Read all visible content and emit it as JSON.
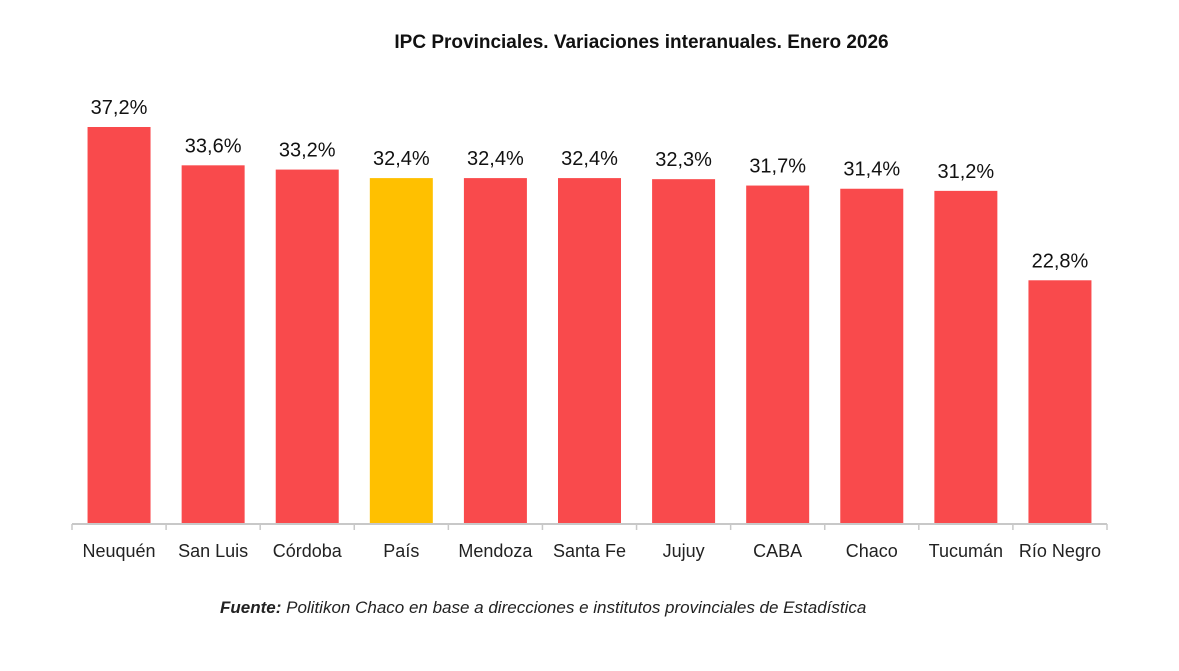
{
  "chart_data": {
    "type": "bar",
    "title": "IPC Provinciales. Variaciones interanuales. Enero 2026",
    "categories": [
      "Neuquén",
      "San Luis",
      "Córdoba",
      "País",
      "Mendoza",
      "Santa Fe",
      "Jujuy",
      "CABA",
      "Chaco",
      "Tucumán",
      "Río Negro"
    ],
    "values": [
      37.2,
      33.6,
      33.2,
      32.4,
      32.4,
      32.4,
      32.3,
      31.7,
      31.4,
      31.2,
      22.8
    ],
    "data_labels": [
      "37,2%",
      "33,6%",
      "33,2%",
      "32,4%",
      "32,4%",
      "32,4%",
      "32,3%",
      "31,7%",
      "31,4%",
      "31,2%",
      "22,8%"
    ],
    "highlight_category": "País",
    "colors": {
      "default": "#F94A4C",
      "highlight": "#FFC000",
      "axis": "#C8C8C8"
    },
    "xlabel": "",
    "ylabel": "",
    "ylim": [
      0,
      37.2
    ],
    "grid": false,
    "legend": "none"
  },
  "source": {
    "label": "Fuente:",
    "text": " Politikon Chaco en base a direcciones e institutos provinciales de Estadística"
  }
}
